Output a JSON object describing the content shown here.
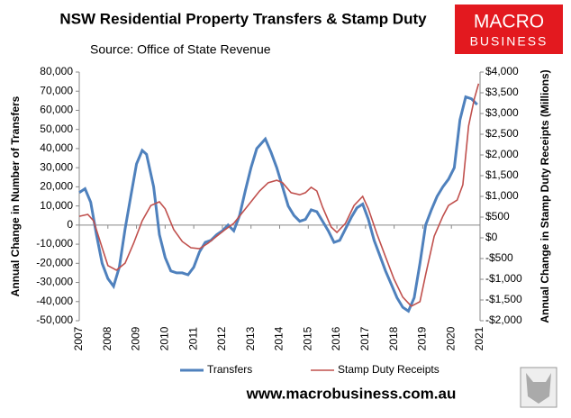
{
  "chart_data": {
    "type": "line",
    "title": "NSW Residential Property Transfers & Stamp Duty",
    "subtitle": "Source: Office of State Revenue",
    "y_label": "Annual Change in Number of Transfers",
    "y2_label": "Annual Change in Stamp Duty Receipts (Millions)",
    "logo": [
      "MACRO",
      "BUSINESS"
    ],
    "footer": "www.macrobusiness.com.au",
    "xlim": [
      2007,
      2021
    ],
    "xticks": [
      2007,
      2008,
      2009,
      2010,
      2011,
      2012,
      2013,
      2014,
      2015,
      2016,
      2017,
      2018,
      2019,
      2020,
      2021
    ],
    "ylim": [
      -50000,
      80000
    ],
    "yticks": [
      {
        "value": -50000,
        "label": "-50,000"
      },
      {
        "value": -40000,
        "label": "-40,000"
      },
      {
        "value": -30000,
        "label": "-30,000"
      },
      {
        "value": -20000,
        "label": "-20,000"
      },
      {
        "value": -10000,
        "label": "-10,000"
      },
      0,
      {
        "value": 10000,
        "label": "10,000"
      },
      {
        "value": 20000,
        "label": "20,000"
      },
      {
        "value": 30000,
        "label": "30,000"
      },
      {
        "value": 40000,
        "label": "40,000"
      },
      {
        "value": 50000,
        "label": "50,000"
      },
      {
        "value": 60000,
        "label": "60,000"
      },
      {
        "value": 70000,
        "label": "70,000"
      },
      {
        "value": 80000,
        "label": "80,000"
      }
    ],
    "y2lim": [
      -2000,
      4000
    ],
    "y2ticks": [
      {
        "value": -2000,
        "label": "-$2,000"
      },
      {
        "value": -1500,
        "label": "-$1,500"
      },
      {
        "value": -1000,
        "label": "-$1,000"
      },
      {
        "value": -500,
        "label": "-$500"
      },
      {
        "value": 0,
        "label": "$0"
      },
      {
        "value": 500,
        "label": "$500"
      },
      {
        "value": 1000,
        "label": "$1,000"
      },
      {
        "value": 1500,
        "label": "$1,500"
      },
      {
        "value": 2000,
        "label": "$2,000"
      },
      {
        "value": 2500,
        "label": "$2,500"
      },
      {
        "value": 3000,
        "label": "$3,000"
      },
      {
        "value": 3500,
        "label": "$3,500"
      },
      {
        "value": 4000,
        "label": "$4,000"
      }
    ],
    "legend": "bottom",
    "series": [
      {
        "name": "Transfers",
        "color": "#4f81bd",
        "axis": "y",
        "x": [
          2007.0,
          2007.2,
          2007.4,
          2007.6,
          2007.8,
          2008.0,
          2008.2,
          2008.4,
          2008.6,
          2008.8,
          2009.0,
          2009.2,
          2009.35,
          2009.6,
          2009.8,
          2010.0,
          2010.2,
          2010.4,
          2010.6,
          2010.8,
          2011.0,
          2011.2,
          2011.4,
          2011.6,
          2011.8,
          2012.0,
          2012.2,
          2012.4,
          2012.6,
          2012.8,
          2013.0,
          2013.2,
          2013.5,
          2013.7,
          2013.9,
          2014.1,
          2014.3,
          2014.5,
          2014.7,
          2014.9,
          2015.1,
          2015.3,
          2015.5,
          2015.7,
          2015.9,
          2016.1,
          2016.3,
          2016.5,
          2016.7,
          2016.9,
          2017.1,
          2017.3,
          2017.5,
          2017.7,
          2017.9,
          2018.1,
          2018.3,
          2018.5,
          2018.7,
          2018.9,
          2019.1,
          2019.3,
          2019.5,
          2019.7,
          2019.9,
          2020.1,
          2020.3,
          2020.5,
          2020.7,
          2020.9
        ],
        "values": [
          17000,
          19000,
          12000,
          -5000,
          -20000,
          -28000,
          -32000,
          -22000,
          -2000,
          15000,
          32000,
          39000,
          37000,
          20000,
          -5000,
          -17000,
          -24000,
          -25000,
          -25000,
          -26000,
          -22000,
          -14000,
          -9000,
          -8000,
          -5000,
          -3000,
          0,
          -3000,
          5000,
          18000,
          30000,
          40000,
          45000,
          38000,
          30000,
          20000,
          10000,
          5000,
          2000,
          3000,
          8000,
          7000,
          2000,
          -3000,
          -9000,
          -8000,
          -2000,
          4000,
          9000,
          11000,
          3000,
          -8000,
          -16000,
          -24000,
          -31000,
          -38000,
          -43000,
          -45000,
          -38000,
          -20000,
          0,
          8000,
          15000,
          20000,
          24000,
          30000,
          55000,
          67000,
          66000,
          63000
        ]
      },
      {
        "name": "Stamp Duty Receipts",
        "color": "#c0504d",
        "axis": "y2",
        "x": [
          2007.0,
          2007.3,
          2007.5,
          2007.8,
          2008.0,
          2008.3,
          2008.6,
          2008.9,
          2009.2,
          2009.5,
          2009.8,
          2010.0,
          2010.3,
          2010.6,
          2010.9,
          2011.2,
          2011.5,
          2011.8,
          2012.1,
          2012.4,
          2012.7,
          2013.0,
          2013.3,
          2013.6,
          2013.9,
          2014.1,
          2014.4,
          2014.7,
          2014.9,
          2015.1,
          2015.3,
          2015.5,
          2015.8,
          2016.0,
          2016.3,
          2016.6,
          2016.9,
          2017.1,
          2017.4,
          2017.7,
          2018.0,
          2018.3,
          2018.6,
          2018.9,
          2019.1,
          2019.4,
          2019.7,
          2019.9,
          2020.2,
          2020.4,
          2020.6,
          2020.8,
          2020.95
        ],
        "values": [
          520,
          565,
          410,
          -240,
          -670,
          -780,
          -610,
          -130,
          410,
          780,
          870,
          700,
          200,
          -90,
          -240,
          -260,
          -130,
          40,
          200,
          350,
          610,
          870,
          1130,
          1330,
          1390,
          1330,
          1090,
          1040,
          1090,
          1220,
          1130,
          740,
          260,
          130,
          350,
          780,
          1000,
          700,
          90,
          -460,
          -1000,
          -1430,
          -1650,
          -1540,
          -890,
          40,
          520,
          780,
          910,
          1280,
          2700,
          3350,
          3720
        ]
      }
    ]
  }
}
